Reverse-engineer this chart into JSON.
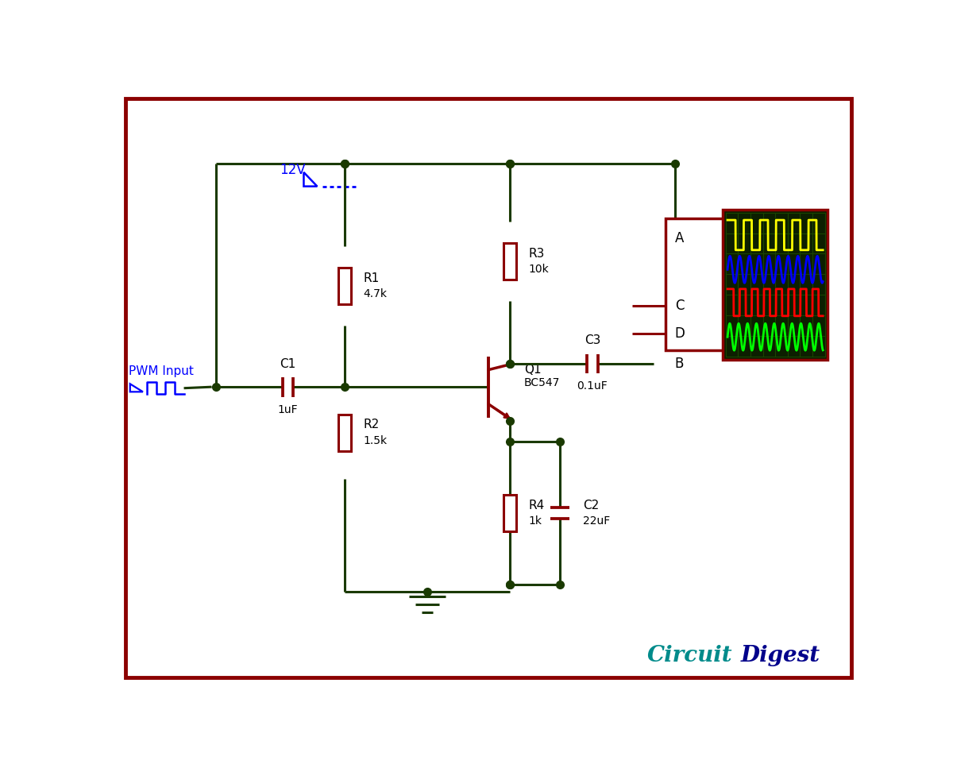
{
  "bg_color": "#ffffff",
  "border_color": "#8b0000",
  "wire_color": "#1a3a00",
  "component_color": "#8b0000",
  "blue_color": "#0000cc",
  "dot_color": "#1a3a00",
  "text_color": "#000000",
  "osc_bg": "#0d2200",
  "osc_grid": "#1f4d00",
  "logo_teal": "#008b8b",
  "logo_dark": "#00008b",
  "figsize": [
    12.0,
    9.67
  ],
  "dpi": 100,
  "xlim": [
    0,
    12
  ],
  "ylim": [
    0,
    9.67
  ],
  "lw_wire": 2.2,
  "lw_comp": 2.2,
  "lw_border": 3.5
}
